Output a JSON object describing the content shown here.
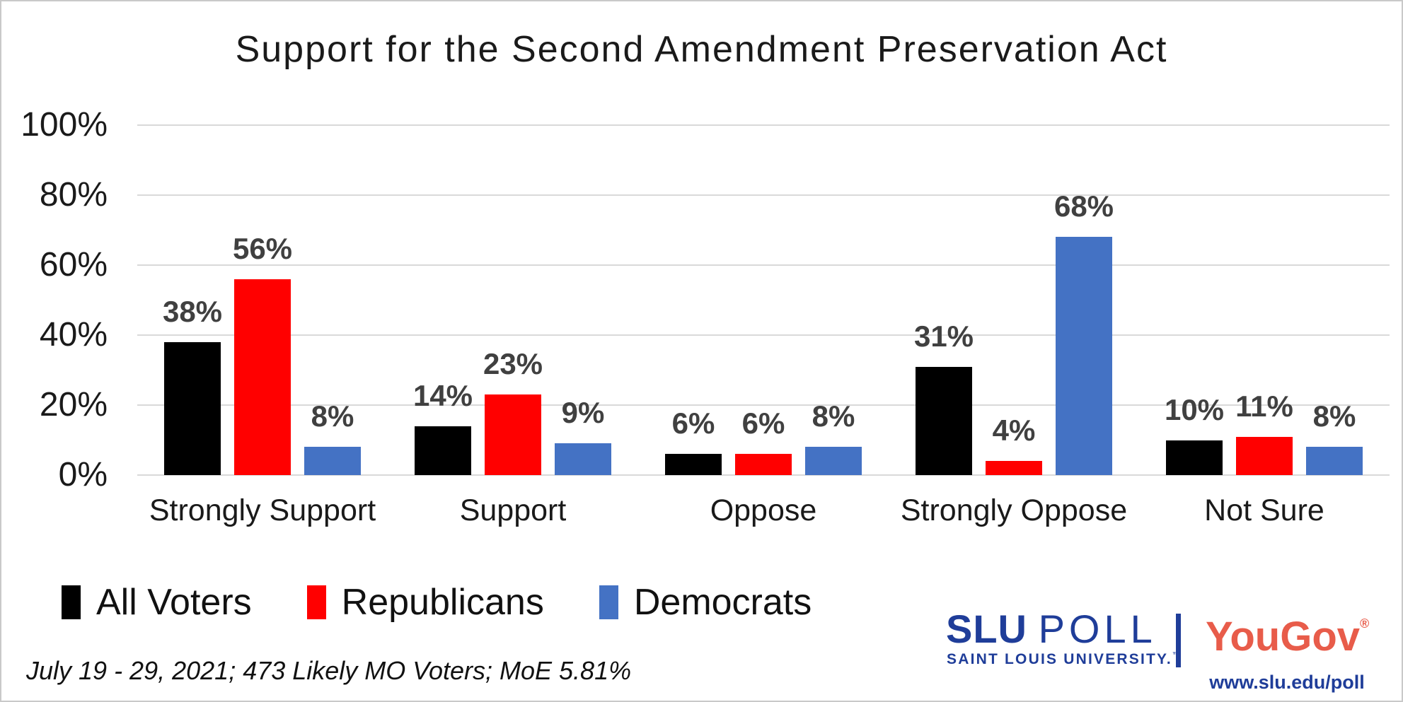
{
  "chart_data": {
    "type": "bar",
    "title": "Support for the Second Amendment Preservation Act",
    "categories": [
      "Strongly Support",
      "Support",
      "Oppose",
      "Strongly Oppose",
      "Not Sure"
    ],
    "series": [
      {
        "name": "All Voters",
        "color": "#000000",
        "values": [
          38,
          14,
          6,
          31,
          10
        ]
      },
      {
        "name": "Republicans",
        "color": "#FF0000",
        "values": [
          56,
          23,
          6,
          4,
          11
        ]
      },
      {
        "name": "Democrats",
        "color": "#4472C4",
        "values": [
          8,
          9,
          8,
          68,
          8
        ]
      }
    ],
    "xlabel": "",
    "ylabel": "",
    "ylim": [
      0,
      100
    ],
    "yticks": [
      "0%",
      "20%",
      "40%",
      "60%",
      "80%",
      "100%"
    ],
    "grid": true,
    "value_label_suffix": "%",
    "legend_position": "bottom-left"
  },
  "colors": {
    "gridline": "#D9D9D9",
    "value_label": "#404040",
    "axis_text": "#1A1A1A"
  },
  "footnote": "July 19 - 29, 2021; 473 Likely MO Voters; MoE 5.81%",
  "branding": {
    "slu_name": "SLU",
    "slu_product": "POLL",
    "slu_subtitle": "SAINT LOUIS UNIVERSITY.",
    "slu_trademark": "™",
    "yougov_name": "YouGov",
    "yougov_registered": "®",
    "url": "www.slu.edu/poll",
    "slu_blue": "#1F3D99",
    "yougov_coral": "#E85C4A"
  }
}
